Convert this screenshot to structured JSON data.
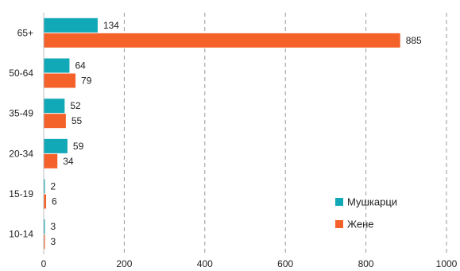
{
  "chart_data": {
    "type": "bar",
    "orientation": "horizontal",
    "categories": [
      "65+",
      "50-64",
      "35-49",
      "20-34",
      "15-19",
      "10-14"
    ],
    "series": [
      {
        "name": "Мушкарци",
        "values": [
          134,
          64,
          52,
          59,
          2,
          3
        ],
        "color": "#11a9b8"
      },
      {
        "name": "Жене",
        "values": [
          885,
          79,
          55,
          34,
          6,
          3
        ],
        "color": "#f4622a"
      }
    ],
    "xlim": [
      0,
      1000
    ],
    "xticks": [
      0,
      200,
      400,
      600,
      800,
      1000
    ],
    "grid": "vertical-dashed",
    "legend_position": "bottom-right",
    "title": "",
    "xlabel": "",
    "ylabel": ""
  }
}
